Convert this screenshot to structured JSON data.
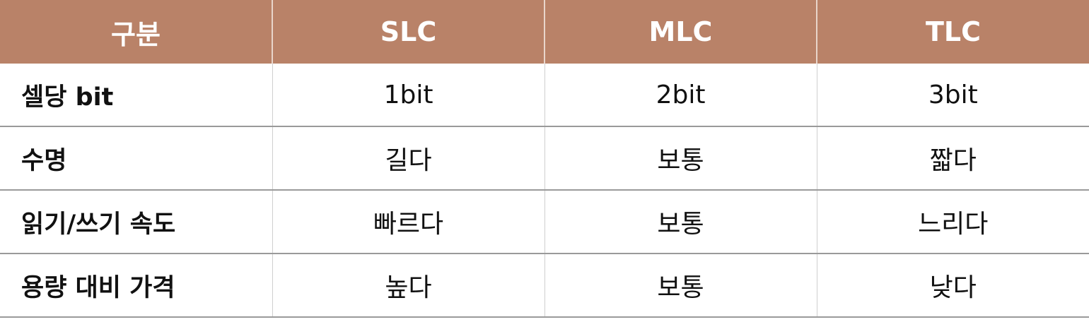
{
  "table": {
    "headers": [
      "구분",
      "SLC",
      "MLC",
      "TLC"
    ],
    "rows": [
      [
        "셀당 bit",
        "1bit",
        "2bit",
        "3bit"
      ],
      [
        "수명",
        "길다",
        "보통",
        "짧다"
      ],
      [
        "읽기/쓰기 속도",
        "빠르다",
        "보통",
        "느리다"
      ],
      [
        "용량 대비 가격",
        "높다",
        "보통",
        "낮다"
      ]
    ]
  },
  "colors": {
    "header_background": "#b98268",
    "header_text": "#ffffff",
    "row_divider": "#9a9a9a"
  }
}
